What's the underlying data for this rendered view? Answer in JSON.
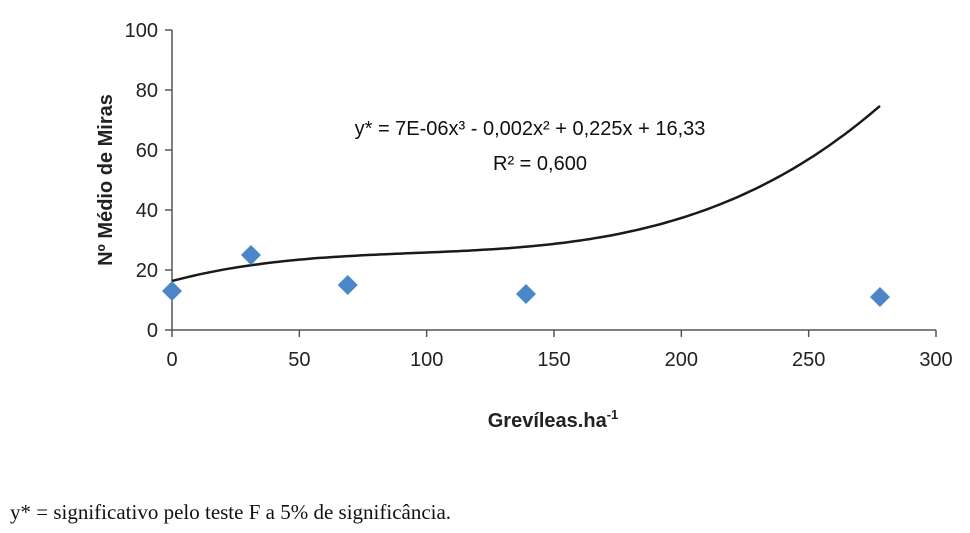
{
  "chart_data": {
    "type": "scatter",
    "xlabel": "Grevíleas.ha",
    "xlabel_sup": "-1",
    "ylabel": "Nº Médio de Miras",
    "xlim": [
      0,
      300
    ],
    "ylim": [
      0,
      100
    ],
    "x_ticks": [
      "0",
      "50",
      "100",
      "150",
      "200",
      "250",
      "300"
    ],
    "y_ticks": [
      "0",
      "20",
      "40",
      "60",
      "80",
      "100"
    ],
    "grid": false,
    "points": [
      {
        "x": 0,
        "y": 13
      },
      {
        "x": 31,
        "y": 25
      },
      {
        "x": 69,
        "y": 15
      },
      {
        "x": 139,
        "y": 12
      },
      {
        "x": 278,
        "y": 11
      }
    ],
    "trendline": {
      "type": "polynomial",
      "degree": 3,
      "coefficients": [
        7e-06,
        -0.002,
        0.225,
        16.33
      ],
      "equation_label": "y* = 7E-06x³ - 0,002x² + 0,225x + 16,33",
      "r2_label": "R² = 0,600"
    },
    "colors": {
      "marker": "#4a86c8",
      "line": "#1a1a1a",
      "axis": "#555555"
    }
  },
  "footnote": "y* = significativo pelo teste F a 5% de significância."
}
